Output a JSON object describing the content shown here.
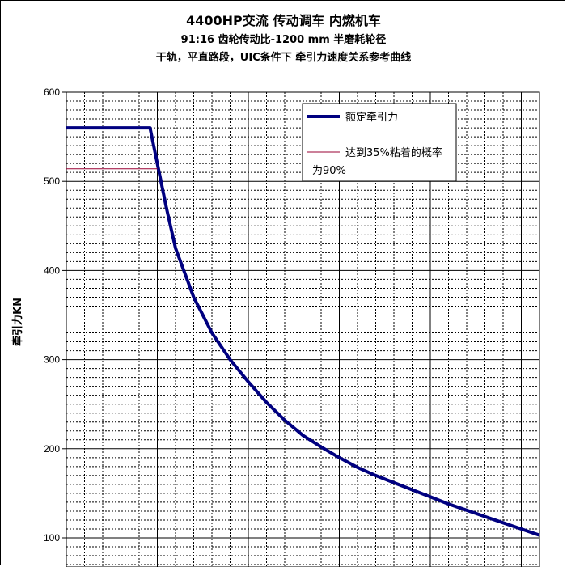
{
  "chart_data": {
    "type": "line",
    "title": "4400HP交流 传动调车 内燃机车",
    "subtitle": "91:16 齿轮传动比-1200 mm 半磨耗轮径",
    "subtitle2": "干轨，平直路段，UIC条件下  牵引力速度关系参考曲线",
    "ylabel": "牵引力KN",
    "ylim": [
      100,
      600
    ],
    "yticks": [
      100,
      200,
      300,
      400,
      500,
      600
    ],
    "xlim": [
      0,
      26
    ],
    "grid": true,
    "legend_position": "top-right",
    "series": [
      {
        "name": "额定牵引力",
        "color": "#000080",
        "points": [
          [
            0,
            560
          ],
          [
            4.6,
            560
          ],
          [
            5,
            520
          ],
          [
            5.5,
            470
          ],
          [
            6,
            425
          ],
          [
            7,
            370
          ],
          [
            8,
            330
          ],
          [
            9,
            300
          ],
          [
            10,
            275
          ],
          [
            11,
            252
          ],
          [
            12,
            232
          ],
          [
            13,
            215
          ],
          [
            14,
            202
          ],
          [
            15,
            190
          ],
          [
            16,
            179
          ],
          [
            17,
            170
          ],
          [
            18,
            162
          ],
          [
            19,
            154
          ],
          [
            20,
            146
          ],
          [
            21,
            138
          ],
          [
            22,
            131
          ],
          [
            23,
            124
          ],
          [
            24,
            117
          ],
          [
            25,
            110
          ],
          [
            26,
            103
          ]
        ]
      },
      {
        "name": "达到35%粘着的概率为90%",
        "label_line1": "达到35%粘着的概率",
        "label_line2": "为90%",
        "color": "#990033",
        "points": [
          [
            0,
            514
          ],
          [
            5,
            514
          ]
        ]
      }
    ]
  }
}
